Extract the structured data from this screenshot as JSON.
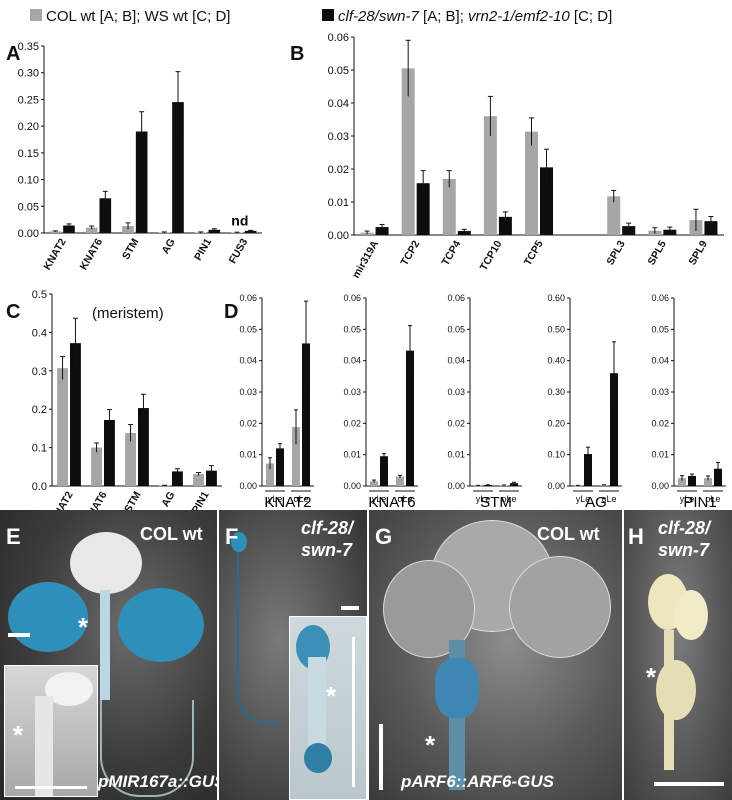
{
  "legend": {
    "gray_label_plain": "COL wt [A; B]; WS wt [C; D]",
    "black_label_italic_1": "clf-28/swn-7",
    "black_label_mid": " [A; B]; ",
    "black_label_italic_2": "vrn2-1/emf2-10",
    "black_label_end": " [C; D]"
  },
  "colors": {
    "wt": "#a6a6a6",
    "mut": "#0d0d0d"
  },
  "chart_data": [
    {
      "panel": "A",
      "type": "bar",
      "categories": [
        "KNAT2",
        "KNAT6",
        "STM",
        "AG",
        "PIN1",
        "FUS3"
      ],
      "series": [
        {
          "values": [
            0.003,
            0.01,
            0.013,
            0.001,
            0.001,
            0.001
          ],
          "errors": [
            0.001,
            0.003,
            0.006,
            0.001,
            0.001,
            0.0005
          ]
        },
        {
          "values": [
            0.014,
            0.065,
            0.19,
            0.245,
            0.006,
            0.004
          ],
          "errors": [
            0.003,
            0.013,
            0.037,
            0.057,
            0.002,
            0.001
          ]
        }
      ],
      "ylim": [
        0,
        0.35
      ],
      "yticks": [
        "0.00",
        "0.05",
        "0.10",
        "0.15",
        "0.20",
        "0.25",
        "0.30",
        "0.35"
      ],
      "annotations": [
        {
          "text": "nd",
          "category": "FUS3"
        }
      ]
    },
    {
      "panel": "B",
      "type": "bar",
      "categories": [
        "mir319A",
        "TCP2",
        "TCP4",
        "TCP10",
        "TCP5",
        "",
        "SPL3",
        "SPL5",
        "SPL9"
      ],
      "series": [
        {
          "values": [
            0.0007,
            0.0505,
            0.017,
            0.036,
            0.0313,
            null,
            0.0117,
            0.0013,
            0.0045
          ],
          "errors": [
            0.0005,
            0.0085,
            0.0025,
            0.006,
            0.0042,
            null,
            0.0018,
            0.0009,
            0.0033
          ]
        },
        {
          "values": [
            0.0024,
            0.0157,
            0.0012,
            0.0055,
            0.0205,
            null,
            0.0027,
            0.0016,
            0.0042
          ],
          "errors": [
            0.0008,
            0.0038,
            0.0005,
            0.0015,
            0.0055,
            null,
            0.0009,
            0.0008,
            0.0014
          ]
        }
      ],
      "ylim": [
        0,
        0.06
      ],
      "yticks": [
        "0.00",
        "0.01",
        "0.02",
        "0.03",
        "0.04",
        "0.05",
        "0.06"
      ]
    },
    {
      "panel": "C",
      "type": "bar",
      "title": "(meristem)",
      "categories": [
        "KNAT2",
        "KNAT6",
        "STM",
        "AG",
        "PIN1"
      ],
      "series": [
        {
          "values": [
            0.307,
            0.1,
            0.138,
            0.001,
            0.031
          ],
          "errors": [
            0.03,
            0.012,
            0.022,
            0.001,
            0.004
          ]
        },
        {
          "values": [
            0.372,
            0.172,
            0.203,
            0.038,
            0.04
          ],
          "errors": [
            0.065,
            0.027,
            0.036,
            0.007,
            0.013
          ]
        }
      ],
      "ylim": [
        0,
        0.5
      ],
      "yticks": [
        "0.0",
        "0.1",
        "0.2",
        "0.3",
        "0.4",
        "0.5"
      ]
    },
    {
      "panel": "D",
      "type": "bar",
      "subplots": [
        {
          "gene": "KNAT2",
          "categories": [
            "yLe",
            "oLe"
          ],
          "ylim": [
            0,
            0.06
          ],
          "yticks": [
            "0.00",
            "0.01",
            "0.02",
            "0.03",
            "0.04",
            "0.05",
            "0.06"
          ],
          "series": [
            {
              "values": [
                0.0072,
                0.0188
              ],
              "errors": [
                0.0018,
                0.0055
              ]
            },
            {
              "values": [
                0.012,
                0.0455
              ],
              "errors": [
                0.0015,
                0.0135
              ]
            }
          ]
        },
        {
          "gene": "KNAT6",
          "categories": [
            "yLe",
            "oLe"
          ],
          "ylim": [
            0,
            0.06
          ],
          "yticks": [
            "0.00",
            "0.01",
            "0.02",
            "0.03",
            "0.04",
            "0.05",
            "0.06"
          ],
          "series": [
            {
              "values": [
                0.0015,
                0.003
              ],
              "errors": [
                0.0004,
                0.0004
              ]
            },
            {
              "values": [
                0.0095,
                0.0432
              ],
              "errors": [
                0.0008,
                0.008
              ]
            }
          ]
        },
        {
          "gene": "STM",
          "categories": [
            "yLe",
            "oLe"
          ],
          "ylim": [
            0,
            0.06
          ],
          "yticks": [
            "0.00",
            "0.01",
            "0.02",
            "0.03",
            "0.04",
            "0.05",
            "0.06"
          ],
          "series": [
            {
              "values": [
                0.0001,
                0.0002
              ],
              "errors": [
                0.0001,
                0.0001
              ]
            },
            {
              "values": [
                0.0003,
                0.0009
              ],
              "errors": [
                0.0001,
                0.0003
              ]
            }
          ]
        },
        {
          "gene": "AG",
          "categories": [
            "yLe",
            "oLe"
          ],
          "ylim": [
            0,
            0.6
          ],
          "yticks": [
            "0.00",
            "0.10",
            "0.20",
            "0.30",
            "0.40",
            "0.50",
            "0.60"
          ],
          "series": [
            {
              "values": [
                0.001,
                0.003
              ],
              "errors": [
                0.001,
                0.001
              ]
            },
            {
              "values": [
                0.102,
                0.36
              ],
              "errors": [
                0.022,
                0.1
              ]
            }
          ]
        },
        {
          "gene": "PIN1",
          "categories": [
            "yLe",
            "oLe"
          ],
          "ylim": [
            0,
            0.06
          ],
          "yticks": [
            "0.00",
            "0.01",
            "0.02",
            "0.03",
            "0.04",
            "0.05",
            "0.06"
          ],
          "series": [
            {
              "values": [
                0.0025,
                0.0025
              ],
              "errors": [
                0.0008,
                0.0007
              ]
            },
            {
              "values": [
                0.0032,
                0.0055
              ],
              "errors": [
                0.0006,
                0.002
              ]
            }
          ]
        }
      ]
    }
  ],
  "photos": {
    "E": {
      "letter": "E",
      "label": "COL wt",
      "caption": "pMIR167a::GUS"
    },
    "F": {
      "letter": "F",
      "label_line1": "clf-28/",
      "label_line2": "swn-7"
    },
    "G": {
      "letter": "G",
      "label": "COL wt",
      "caption": "pARF6::ARF6-GUS"
    },
    "H": {
      "letter": "H",
      "label_line1": "clf-28/",
      "label_line2": "swn-7"
    }
  }
}
